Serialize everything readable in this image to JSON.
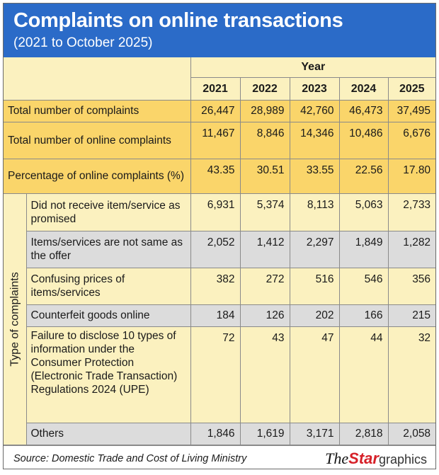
{
  "title": "Complaints on online transactions",
  "subtitle": "(2021 to October 2025)",
  "year_label": "Year",
  "years": [
    "2021",
    "2022",
    "2023",
    "2024",
    "2025"
  ],
  "type_label": "Type of complaints",
  "summary_rows": [
    {
      "label": "Total number of complaints",
      "values": [
        "26,447",
        "28,989",
        "42,760",
        "46,473",
        "37,495"
      ]
    },
    {
      "label": "Total number of online complaints",
      "values": [
        "11,467",
        "8,846",
        "14,346",
        "10,486",
        "6,676"
      ]
    },
    {
      "label": "Percentage of online complaints (%)",
      "values": [
        "43.35",
        "30.51",
        "33.55",
        "22.56",
        "17.80"
      ]
    }
  ],
  "type_rows": [
    {
      "label": "Did not receive item/service as promised",
      "values": [
        "6,931",
        "5,374",
        "8,113",
        "5,063",
        "2,733"
      ]
    },
    {
      "label": "Items/services are not same as the offer",
      "values": [
        "2,052",
        "1,412",
        "2,297",
        "1,849",
        "1,282"
      ]
    },
    {
      "label": "Confusing prices of items/services",
      "values": [
        "382",
        "272",
        "516",
        "546",
        "356"
      ]
    },
    {
      "label": "Counterfeit goods online",
      "values": [
        "184",
        "126",
        "202",
        "166",
        "215"
      ]
    },
    {
      "label": "Failure to disclose 10 types of information under the Consumer Protection (Electronic Trade Transaction) Regulations 2024 (UPE)",
      "values": [
        "72",
        "43",
        "47",
        "44",
        "32"
      ]
    },
    {
      "label": "Others",
      "values": [
        "1,846",
        "1,619",
        "3,171",
        "2,818",
        "2,058"
      ]
    }
  ],
  "source": "Source: Domestic Trade and Cost of Living Ministry",
  "logo": {
    "the": "The",
    "star": "Star",
    "graphics": "graphics"
  }
}
